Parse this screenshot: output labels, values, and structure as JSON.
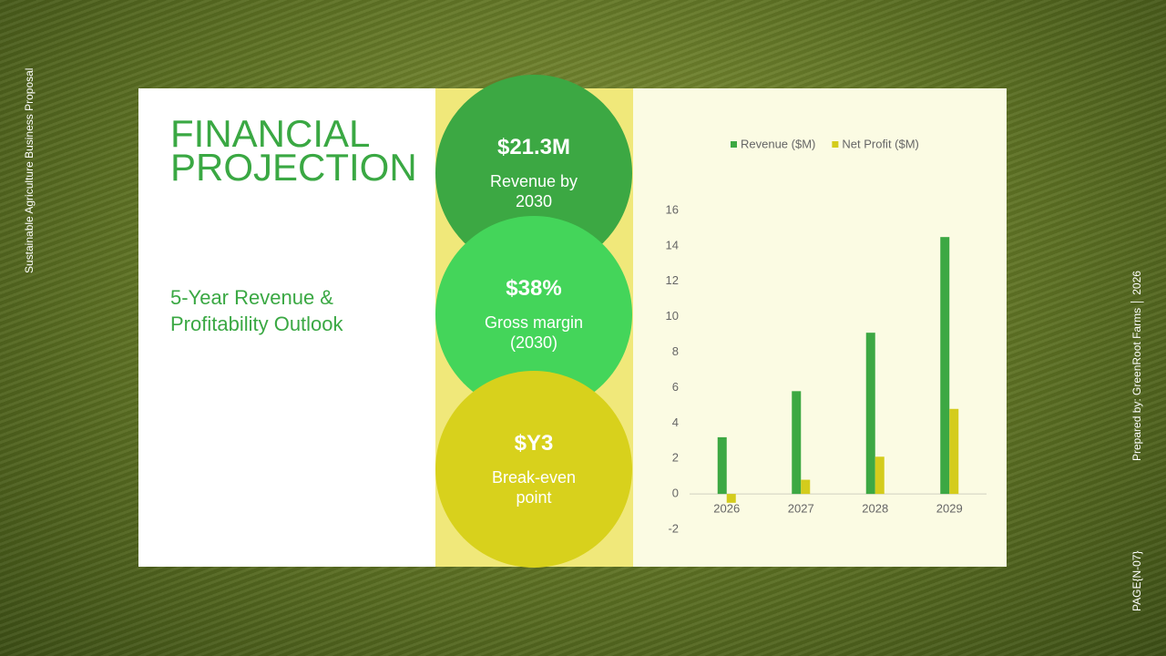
{
  "slide": {
    "side_left": "Sustainable Agriculture Business Proposal",
    "side_right": "Prepared by: GreenRoot Farms │ 2026",
    "page_label": "PAGE{N-07}",
    "title": "FINANCIAL PROJECTION",
    "subtitle": "5-Year Revenue & Profitability Outlook",
    "highlights": [
      {
        "value": "$21.3M",
        "label": "Revenue by 2030",
        "color": "#3ca843"
      },
      {
        "value": "$38%",
        "label": "Gross margin (2030)",
        "color": "#44d55a"
      },
      {
        "value": "$Y3",
        "label": "Break-even point",
        "color": "#d8d11c"
      }
    ]
  },
  "chart_data": {
    "type": "bar",
    "categories": [
      "2026",
      "2027",
      "2028",
      "2029"
    ],
    "series": [
      {
        "name": "Revenue ($M)",
        "color": "#3ca843",
        "values": [
          3.2,
          5.8,
          9.1,
          14.5
        ]
      },
      {
        "name": "Net Profit ($M)",
        "color": "#d4cc1c",
        "values": [
          -0.5,
          0.8,
          2.1,
          4.8
        ]
      }
    ],
    "ylim": [
      -2,
      16
    ],
    "yticks": [
      -2,
      0,
      2,
      4,
      6,
      8,
      10,
      12,
      14,
      16
    ],
    "legend": "top"
  }
}
